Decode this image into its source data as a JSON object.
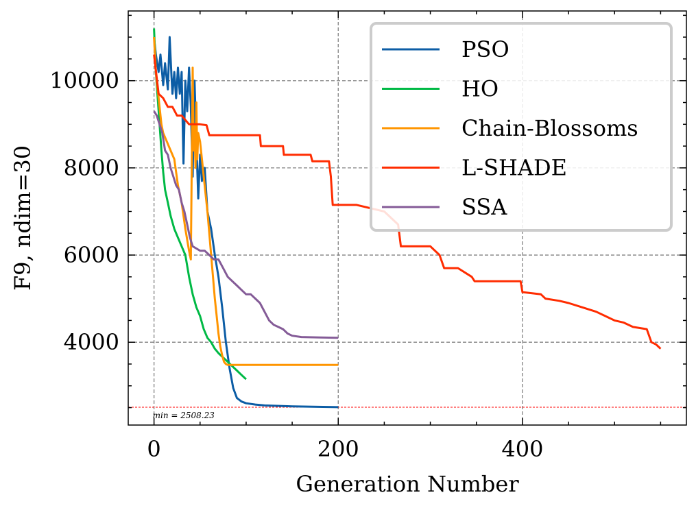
{
  "chart_data": {
    "type": "line",
    "title": "",
    "xlabel": "Generation Number",
    "ylabel": "F9, ndim=30",
    "xlim": [
      -28,
      578
    ],
    "ylim": [
      2100,
      11600
    ],
    "xticks": [
      0,
      200,
      400
    ],
    "yticks": [
      4000,
      6000,
      8000,
      10000
    ],
    "grid": true,
    "legend_position": "top-right",
    "min_line": {
      "value": 2508.23,
      "label": "min = 2508.23",
      "color": "#ff0000"
    },
    "series": [
      {
        "name": "PSO",
        "color": "#0C5DA5",
        "points": [
          [
            0,
            11000
          ],
          [
            2,
            10600
          ],
          [
            5,
            10200
          ],
          [
            7,
            10600
          ],
          [
            10,
            9900
          ],
          [
            12,
            10400
          ],
          [
            15,
            9800
          ],
          [
            17,
            11000
          ],
          [
            19,
            10100
          ],
          [
            20,
            9700
          ],
          [
            22,
            10200
          ],
          [
            24,
            9600
          ],
          [
            26,
            10300
          ],
          [
            28,
            9700
          ],
          [
            30,
            10200
          ],
          [
            32,
            8100
          ],
          [
            34,
            10000
          ],
          [
            36,
            9300
          ],
          [
            38,
            10300
          ],
          [
            40,
            9400
          ],
          [
            42,
            7800
          ],
          [
            44,
            10000
          ],
          [
            46,
            8600
          ],
          [
            48,
            7300
          ],
          [
            50,
            8300
          ],
          [
            52,
            7700
          ],
          [
            55,
            8000
          ],
          [
            58,
            7000
          ],
          [
            62,
            6600
          ],
          [
            66,
            6000
          ],
          [
            70,
            5500
          ],
          [
            74,
            4800
          ],
          [
            78,
            4000
          ],
          [
            82,
            3400
          ],
          [
            86,
            2950
          ],
          [
            90,
            2720
          ],
          [
            95,
            2640
          ],
          [
            100,
            2600
          ],
          [
            110,
            2570
          ],
          [
            120,
            2550
          ],
          [
            150,
            2530
          ],
          [
            200,
            2510
          ]
        ]
      },
      {
        "name": "HO",
        "color": "#00B945",
        "points": [
          [
            0,
            11200
          ],
          [
            2,
            10200
          ],
          [
            4,
            9600
          ],
          [
            6,
            9000
          ],
          [
            8,
            8400
          ],
          [
            10,
            7900
          ],
          [
            12,
            7500
          ],
          [
            15,
            7200
          ],
          [
            18,
            6900
          ],
          [
            22,
            6600
          ],
          [
            26,
            6400
          ],
          [
            30,
            6200
          ],
          [
            34,
            6000
          ],
          [
            38,
            5500
          ],
          [
            42,
            5100
          ],
          [
            46,
            4800
          ],
          [
            50,
            4600
          ],
          [
            54,
            4300
          ],
          [
            58,
            4100
          ],
          [
            62,
            4000
          ],
          [
            66,
            3850
          ],
          [
            70,
            3750
          ],
          [
            75,
            3650
          ],
          [
            80,
            3550
          ],
          [
            85,
            3450
          ],
          [
            90,
            3350
          ],
          [
            95,
            3250
          ],
          [
            100,
            3150
          ]
        ]
      },
      {
        "name": "Chain-Blossoms",
        "color": "#FF9500",
        "points": [
          [
            0,
            11000
          ],
          [
            2,
            10200
          ],
          [
            4,
            9800
          ],
          [
            6,
            9400
          ],
          [
            8,
            9000
          ],
          [
            10,
            8800
          ],
          [
            14,
            8600
          ],
          [
            18,
            8400
          ],
          [
            22,
            8200
          ],
          [
            26,
            7600
          ],
          [
            30,
            7200
          ],
          [
            34,
            6600
          ],
          [
            38,
            6100
          ],
          [
            40,
            5900
          ],
          [
            42,
            10300
          ],
          [
            43,
            8400
          ],
          [
            44,
            9000
          ],
          [
            45,
            8000
          ],
          [
            46,
            9500
          ],
          [
            47,
            8200
          ],
          [
            48,
            8800
          ],
          [
            50,
            8600
          ],
          [
            52,
            8200
          ],
          [
            54,
            7800
          ],
          [
            56,
            7400
          ],
          [
            58,
            7000
          ],
          [
            60,
            6500
          ],
          [
            62,
            6000
          ],
          [
            64,
            5500
          ],
          [
            66,
            5000
          ],
          [
            68,
            4600
          ],
          [
            70,
            4200
          ],
          [
            72,
            3900
          ],
          [
            74,
            3700
          ],
          [
            76,
            3550
          ],
          [
            78,
            3500
          ],
          [
            80,
            3480
          ],
          [
            100,
            3480
          ],
          [
            200,
            3480
          ]
        ]
      },
      {
        "name": "L-SHADE",
        "color": "#FF2C00",
        "points": [
          [
            0,
            10600
          ],
          [
            5,
            9700
          ],
          [
            10,
            9600
          ],
          [
            15,
            9400
          ],
          [
            20,
            9400
          ],
          [
            25,
            9200
          ],
          [
            30,
            9200
          ],
          [
            38,
            9000
          ],
          [
            50,
            9000
          ],
          [
            57,
            8980
          ],
          [
            60,
            8750
          ],
          [
            85,
            8750
          ],
          [
            115,
            8750
          ],
          [
            116,
            8500
          ],
          [
            140,
            8500
          ],
          [
            141,
            8300
          ],
          [
            170,
            8300
          ],
          [
            172,
            8150
          ],
          [
            190,
            8150
          ],
          [
            192,
            7800
          ],
          [
            194,
            7150
          ],
          [
            220,
            7150
          ],
          [
            250,
            7000
          ],
          [
            265,
            6700
          ],
          [
            268,
            6200
          ],
          [
            300,
            6200
          ],
          [
            310,
            6000
          ],
          [
            315,
            5700
          ],
          [
            330,
            5700
          ],
          [
            345,
            5500
          ],
          [
            348,
            5400
          ],
          [
            380,
            5400
          ],
          [
            398,
            5400
          ],
          [
            400,
            5150
          ],
          [
            420,
            5100
          ],
          [
            425,
            5000
          ],
          [
            440,
            4950
          ],
          [
            450,
            4900
          ],
          [
            465,
            4800
          ],
          [
            480,
            4700
          ],
          [
            500,
            4500
          ],
          [
            510,
            4450
          ],
          [
            520,
            4350
          ],
          [
            535,
            4300
          ],
          [
            540,
            4000
          ],
          [
            545,
            3950
          ],
          [
            550,
            3850
          ]
        ]
      },
      {
        "name": "SSA",
        "color": "#845B97",
        "points": [
          [
            0,
            9300
          ],
          [
            3,
            9200
          ],
          [
            6,
            9000
          ],
          [
            9,
            8800
          ],
          [
            12,
            8400
          ],
          [
            15,
            8300
          ],
          [
            18,
            8000
          ],
          [
            21,
            7800
          ],
          [
            24,
            7600
          ],
          [
            27,
            7500
          ],
          [
            30,
            7200
          ],
          [
            33,
            7000
          ],
          [
            36,
            6700
          ],
          [
            39,
            6400
          ],
          [
            42,
            6200
          ],
          [
            46,
            6150
          ],
          [
            50,
            6100
          ],
          [
            55,
            6100
          ],
          [
            60,
            6000
          ],
          [
            65,
            5900
          ],
          [
            70,
            5900
          ],
          [
            75,
            5700
          ],
          [
            80,
            5500
          ],
          [
            85,
            5400
          ],
          [
            90,
            5300
          ],
          [
            95,
            5200
          ],
          [
            100,
            5100
          ],
          [
            105,
            5100
          ],
          [
            110,
            5000
          ],
          [
            115,
            4900
          ],
          [
            120,
            4700
          ],
          [
            125,
            4500
          ],
          [
            130,
            4400
          ],
          [
            135,
            4350
          ],
          [
            140,
            4300
          ],
          [
            145,
            4200
          ],
          [
            150,
            4150
          ],
          [
            160,
            4120
          ],
          [
            180,
            4110
          ],
          [
            200,
            4100
          ]
        ]
      }
    ]
  }
}
